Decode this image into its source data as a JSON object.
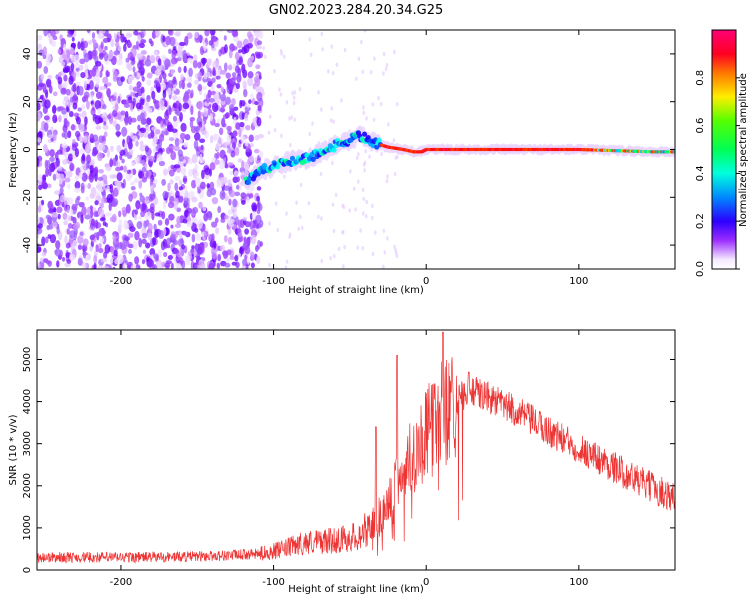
{
  "page": {
    "title": "GN02.2023.284.20.34.G25"
  },
  "chart_data": [
    {
      "type": "heatmap",
      "xlabel": "Height of straight line (km)",
      "ylabel": "Frequency (Hz)",
      "xlim": [
        -255,
        163
      ],
      "ylim": [
        -50,
        50
      ],
      "x_ticks": [
        -200,
        -100,
        0,
        100
      ],
      "y_ticks": [
        -40,
        -20,
        0,
        20,
        40
      ],
      "colorbar": {
        "label": "Normalized spectral amplitude",
        "range": [
          0,
          1
        ],
        "ticks": [
          0.0,
          0.2,
          0.4,
          0.6,
          0.8
        ],
        "colormap": "gist_rainbow_r"
      },
      "ridge": {
        "x": [
          -118,
          -105,
          -90,
          -75,
          -62,
          -50,
          -44,
          -35,
          -25,
          -15,
          -8,
          -3,
          0,
          50,
          100,
          150,
          163
        ],
        "y": [
          -13,
          -8,
          -5,
          -3,
          1,
          4,
          6,
          3,
          1,
          0,
          -1,
          -1,
          0,
          0,
          0,
          -1,
          -1
        ]
      },
      "noise_region": [
        -255,
        -108
      ]
    },
    {
      "type": "line",
      "xlabel": "Height of straight line (km)",
      "ylabel": "SNR (10 * v/v)",
      "xlim": [
        -255,
        163
      ],
      "ylim": [
        0,
        5700
      ],
      "x_ticks": [
        -200,
        -100,
        0,
        100
      ],
      "y_ticks": [
        0,
        1000,
        2000,
        3000,
        4000,
        5000
      ],
      "series": [
        {
          "color": "#ee3333",
          "envelope": {
            "x": [
              -255,
              -200,
              -150,
              -110,
              -95,
              -80,
              -60,
              -45,
              -35,
              -25,
              -18,
              -10,
              0,
              10,
              20,
              30,
              40,
              60,
              80,
              100,
              120,
              140,
              163
            ],
            "y": [
              300,
              300,
              320,
              380,
              480,
              650,
              700,
              800,
              1100,
              1500,
              2200,
              2700,
              3200,
              3700,
              4050,
              4250,
              4100,
              3750,
              3300,
              2900,
              2500,
              2100,
              1700
            ]
          },
          "spikes": [
            {
              "x": -19,
              "y": 5100
            },
            {
              "x": 11,
              "y": 5650
            },
            {
              "x": 28,
              "y": 4700
            },
            {
              "x": -33,
              "y": 3400
            }
          ]
        }
      ]
    }
  ]
}
